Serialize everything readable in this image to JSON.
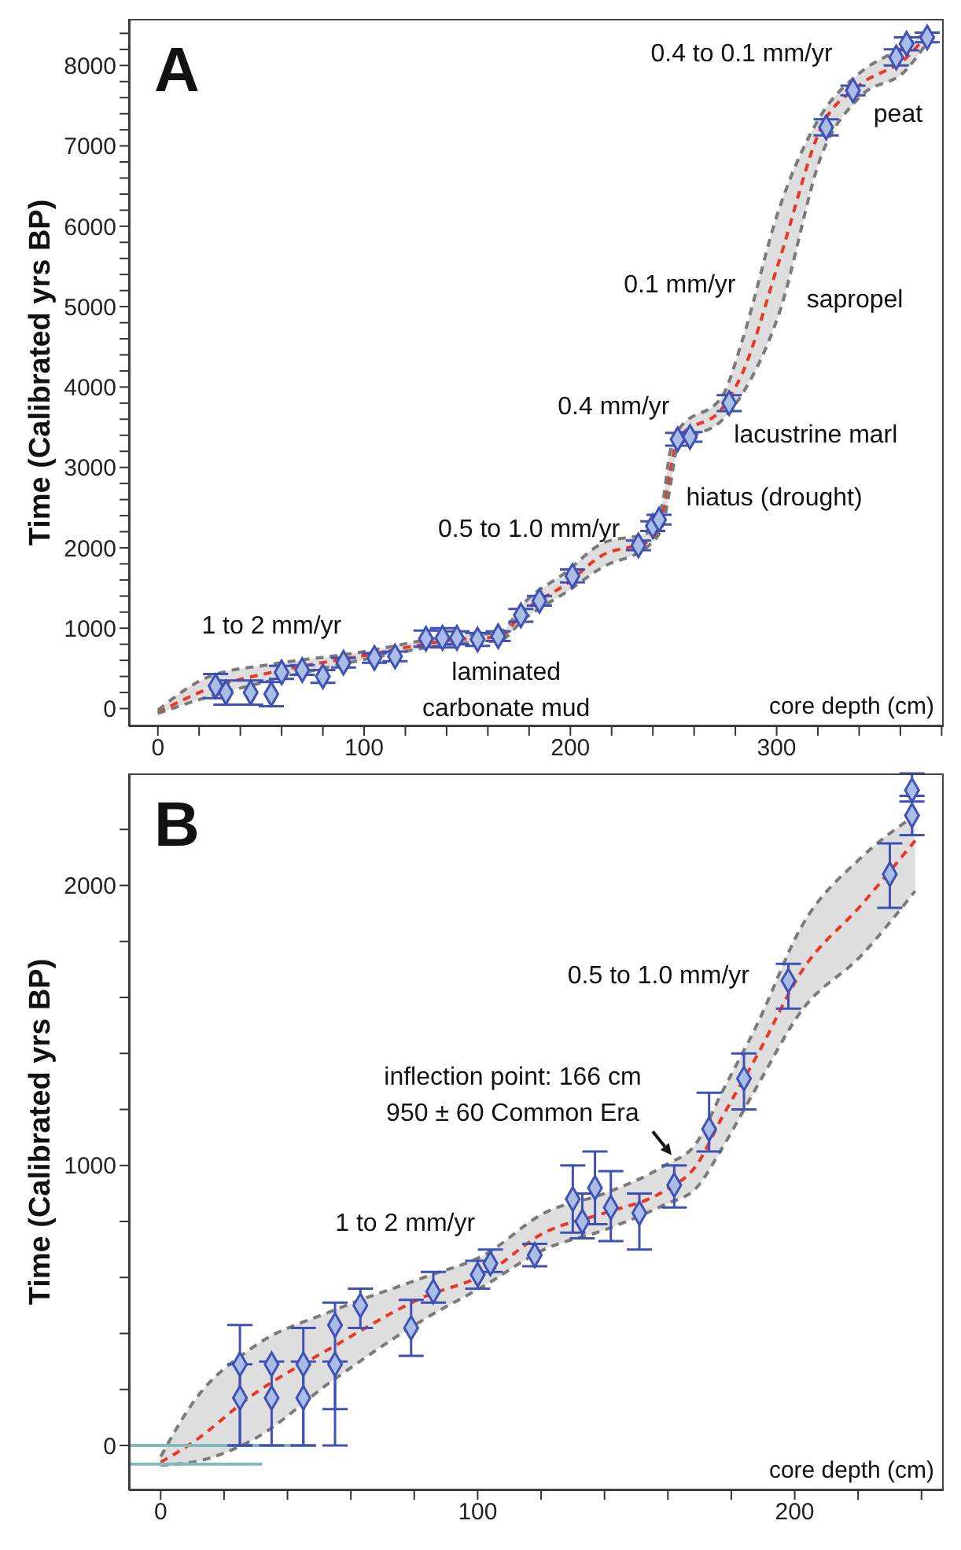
{
  "chart_data": [
    {
      "type": "line",
      "title": "A",
      "xlabel": "core depth (cm)",
      "ylabel": "Time (Calibrated yrs BP)",
      "xlim": [
        -14,
        381
      ],
      "ylim": [
        -220,
        8580
      ],
      "xticks": [
        0,
        {
          "value": 20,
          "label": null
        },
        {
          "value": 40,
          "label": null
        },
        {
          "value": 60,
          "label": null
        },
        {
          "value": 80,
          "label": null
        },
        100,
        {
          "value": 120,
          "label": null
        },
        {
          "value": 140,
          "label": null
        },
        {
          "value": 160,
          "label": null
        },
        {
          "value": 180,
          "label": null
        },
        200,
        {
          "value": 220,
          "label": null
        },
        {
          "value": 240,
          "label": null
        },
        {
          "value": 260,
          "label": null
        },
        {
          "value": 280,
          "label": null
        },
        300,
        {
          "value": 320,
          "label": null
        },
        {
          "value": 340,
          "label": null
        },
        {
          "value": 360,
          "label": null
        },
        {
          "value": 380,
          "label": null
        }
      ],
      "yticks": [
        0,
        {
          "value": 200,
          "label": null
        },
        {
          "value": 400,
          "label": null
        },
        {
          "value": 600,
          "label": null
        },
        {
          "value": 800,
          "label": null
        },
        1000,
        {
          "value": 1200,
          "label": null
        },
        {
          "value": 1400,
          "label": null
        },
        {
          "value": 1600,
          "label": null
        },
        {
          "value": 1800,
          "label": null
        },
        2000,
        {
          "value": 2200,
          "label": null
        },
        {
          "value": 2400,
          "label": null
        },
        {
          "value": 2600,
          "label": null
        },
        {
          "value": 2800,
          "label": null
        },
        3000,
        {
          "value": 3200,
          "label": null
        },
        {
          "value": 3400,
          "label": null
        },
        {
          "value": 3600,
          "label": null
        },
        {
          "value": 3800,
          "label": null
        },
        4000,
        {
          "value": 4200,
          "label": null
        },
        {
          "value": 4400,
          "label": null
        },
        {
          "value": 4600,
          "label": null
        },
        {
          "value": 4800,
          "label": null
        },
        5000,
        {
          "value": 5200,
          "label": null
        },
        {
          "value": 5400,
          "label": null
        },
        {
          "value": 5600,
          "label": null
        },
        {
          "value": 5800,
          "label": null
        },
        6000,
        {
          "value": 6200,
          "label": null
        },
        {
          "value": 6400,
          "label": null
        },
        {
          "value": 6600,
          "label": null
        },
        {
          "value": 6800,
          "label": null
        },
        7000,
        {
          "value": 7200,
          "label": null
        },
        {
          "value": 7400,
          "label": null
        },
        {
          "value": 7600,
          "label": null
        },
        {
          "value": 7800,
          "label": null
        },
        8000,
        {
          "value": 8200,
          "label": null
        },
        {
          "value": 8400,
          "label": null
        }
      ],
      "annotations": [
        "0.4 to 0.1 mm/yr",
        "peat",
        "0.1 mm/yr",
        "sapropel",
        "0.4 mm/yr",
        "lacustrine marl",
        "hiatus (drought)",
        "0.5 to 1.0 mm/yr",
        "1 to 2 mm/yr",
        "laminated\ncarbonate mud"
      ],
      "series": [
        {
          "color": "#e8382a",
          "line_style": "dashed",
          "marker": "none",
          "x": [
            0,
            25,
            55,
            98,
            142,
            166,
            177,
            198,
            215,
            239,
            245,
            248,
            252,
            274,
            283,
            301,
            322,
            340,
            363,
            372
          ],
          "values": [
            -50,
            250,
            450,
            650,
            850,
            900,
            1200,
            1550,
            1900,
            2100,
            2450,
            2900,
            3350,
            3750,
            4150,
            5550,
            7250,
            7750,
            8100,
            8350
          ],
          "lower": [
            -60,
            150,
            350,
            600,
            800,
            850,
            1100,
            1450,
            1750,
            2050,
            2300,
            2700,
            3250,
            3600,
            3900,
            4900,
            6900,
            7600,
            7950,
            8250
          ],
          "upper": [
            -20,
            400,
            550,
            700,
            900,
            950,
            1300,
            1700,
            2050,
            2200,
            2600,
            3150,
            3450,
            3900,
            4550,
            6200,
            7400,
            7900,
            8250,
            8400
          ]
        },
        {
          "color": "#7a7a7a",
          "line_style": "dashed",
          "marker": "none",
          "x": [
            0,
            25,
            55,
            98,
            142,
            166,
            177,
            198,
            215,
            239,
            245,
            248,
            252,
            274,
            283,
            301,
            322,
            340,
            363,
            372
          ],
          "values": [
            -60,
            150,
            350,
            600,
            800,
            850,
            1100,
            1450,
            1750,
            2050,
            2300,
            2700,
            3250,
            3600,
            3900,
            4900,
            6900,
            7600,
            7950,
            8250
          ]
        },
        {
          "color": "#7a7a7a",
          "line_style": "dashed",
          "marker": "none",
          "x": [
            0,
            25,
            55,
            98,
            142,
            166,
            177,
            198,
            215,
            239,
            245,
            248,
            252,
            274,
            283,
            301,
            322,
            340,
            363,
            372
          ],
          "values": [
            -20,
            400,
            550,
            700,
            900,
            950,
            1300,
            1700,
            2050,
            2200,
            2600,
            3150,
            3450,
            3900,
            4550,
            6200,
            7400,
            7900,
            8250,
            8400
          ]
        },
        {
          "type": "scatter",
          "color": "#3f51b5",
          "marker": "diamond",
          "x": [
            28,
            33,
            45,
            55,
            60,
            70,
            80,
            90,
            105,
            115,
            130,
            138,
            145,
            155,
            165,
            176,
            185,
            201,
            233,
            240,
            243,
            252,
            258,
            277,
            324,
            337,
            358,
            363,
            373
          ],
          "values": [
            280,
            200,
            200,
            180,
            450,
            480,
            400,
            570,
            630,
            650,
            870,
            880,
            880,
            860,
            900,
            1160,
            1340,
            1650,
            2030,
            2270,
            2350,
            3350,
            3380,
            3800,
            7230,
            7690,
            8100,
            8270,
            8350
          ],
          "errors": [
            150,
            150,
            150,
            150,
            80,
            60,
            80,
            60,
            60,
            60,
            100,
            120,
            80,
            80,
            60,
            80,
            60,
            80,
            60,
            60,
            60,
            80,
            60,
            100,
            100,
            60,
            100,
            80,
            60
          ]
        }
      ]
    },
    {
      "type": "line",
      "title": "B",
      "xlabel": "core depth (cm)",
      "ylabel": "Time (Calibrated yrs BP)",
      "xlim": [
        -10,
        247
      ],
      "ylim": [
        -160,
        2400
      ],
      "xticks": [
        0,
        {
          "value": 20,
          "label": null
        },
        {
          "value": 40,
          "label": null
        },
        {
          "value": 60,
          "label": null
        },
        {
          "value": 80,
          "label": null
        },
        100,
        {
          "value": 120,
          "label": null
        },
        {
          "value": 140,
          "label": null
        },
        {
          "value": 160,
          "label": null
        },
        {
          "value": 180,
          "label": null
        },
        200,
        {
          "value": 220,
          "label": null
        },
        {
          "value": 240,
          "label": null
        }
      ],
      "yticks": [
        0,
        {
          "value": 200,
          "label": null
        },
        {
          "value": 400,
          "label": null
        },
        {
          "value": 600,
          "label": null
        },
        {
          "value": 800,
          "label": null
        },
        1000,
        {
          "value": 1200,
          "label": null
        },
        {
          "value": 1400,
          "label": null
        },
        {
          "value": 1600,
          "label": null
        },
        {
          "value": 1800,
          "label": null
        },
        2000,
        {
          "value": 2200,
          "label": null
        }
      ],
      "annotations": [
        "0.5 to 1.0 mm/yr",
        "inflection point: 166 cm\n950 ± 60 Common Era",
        "1 to 2 mm/yr"
      ],
      "series": [
        {
          "color": "#e8382a",
          "line_style": "dashed",
          "marker": "none",
          "x": [
            0,
            10,
            29,
            54,
            83,
            102,
            121,
            140,
            159,
            169,
            177,
            188,
            202,
            221,
            238
          ],
          "values": [
            -60,
            10,
            180,
            350,
            530,
            610,
            760,
            830,
            910,
            1000,
            1170,
            1390,
            1690,
            1930,
            2160
          ],
          "lower": [
            -70,
            -60,
            20,
            230,
            450,
            570,
            700,
            770,
            860,
            920,
            1060,
            1280,
            1550,
            1750,
            1980
          ],
          "upper": [
            -40,
            150,
            350,
            480,
            600,
            680,
            830,
            900,
            1000,
            1080,
            1260,
            1500,
            1850,
            2100,
            2250
          ]
        },
        {
          "color": "#7a7a7a",
          "line_style": "dashed",
          "marker": "none",
          "x": [
            0,
            10,
            29,
            54,
            83,
            102,
            121,
            140,
            159,
            169,
            177,
            188,
            202,
            221,
            238
          ],
          "values": [
            -70,
            -60,
            20,
            230,
            450,
            570,
            700,
            770,
            860,
            920,
            1060,
            1280,
            1550,
            1750,
            1980
          ]
        },
        {
          "color": "#7a7a7a",
          "line_style": "dashed",
          "marker": "none",
          "x": [
            0,
            10,
            29,
            54,
            83,
            102,
            121,
            140,
            159,
            169,
            177,
            188,
            202,
            221,
            238
          ],
          "values": [
            -40,
            150,
            350,
            480,
            600,
            680,
            830,
            900,
            1000,
            1080,
            1260,
            1500,
            1850,
            2100,
            2250
          ]
        },
        {
          "type": "scatter",
          "color": "#3f51b5",
          "marker": "diamond",
          "x": [
            25,
            25,
            35,
            35,
            45,
            45,
            55,
            55,
            63,
            79,
            86,
            100,
            104,
            118,
            130,
            133,
            137,
            142,
            151,
            162,
            173,
            184,
            198,
            230,
            237,
            237
          ],
          "values": [
            290,
            170,
            290,
            170,
            290,
            170,
            290,
            430,
            500,
            420,
            550,
            610,
            650,
            680,
            880,
            800,
            920,
            850,
            830,
            930,
            1130,
            1310,
            1660,
            2040,
            2250,
            2340
          ],
          "errors": [
            [
              0,
              430
            ],
            [
              0,
              290
            ],
            [
              0,
              300
            ],
            null,
            [
              0,
              420
            ],
            [
              0,
              300
            ],
            [
              0,
              300
            ],
            [
              130,
              510
            ],
            [
              420,
              560
            ],
            [
              320,
              520
            ],
            [
              510,
              620
            ],
            [
              560,
              660
            ],
            [
              620,
              700
            ],
            [
              640,
              720
            ],
            [
              760,
              1000
            ],
            [
              740,
              900
            ],
            [
              790,
              1050
            ],
            [
              730,
              980
            ],
            [
              700,
              900
            ],
            [
              850,
              1000
            ],
            [
              1050,
              1260
            ],
            [
              1200,
              1400
            ],
            [
              1560,
              1720
            ],
            [
              1920,
              2150
            ],
            [
              2180,
              2320
            ],
            [
              2300,
              2400
            ]
          ]
        },
        {
          "color": "#86b9b9",
          "line_style": "solid",
          "marker": "none",
          "x": [
            -10,
            41.6
          ],
          "values": [
            0,
            0
          ]
        },
        {
          "color": "#86b9b9",
          "line_style": "solid",
          "marker": "none",
          "x": [
            -10,
            32
          ],
          "values": [
            -67,
            -67
          ]
        }
      ]
    }
  ]
}
